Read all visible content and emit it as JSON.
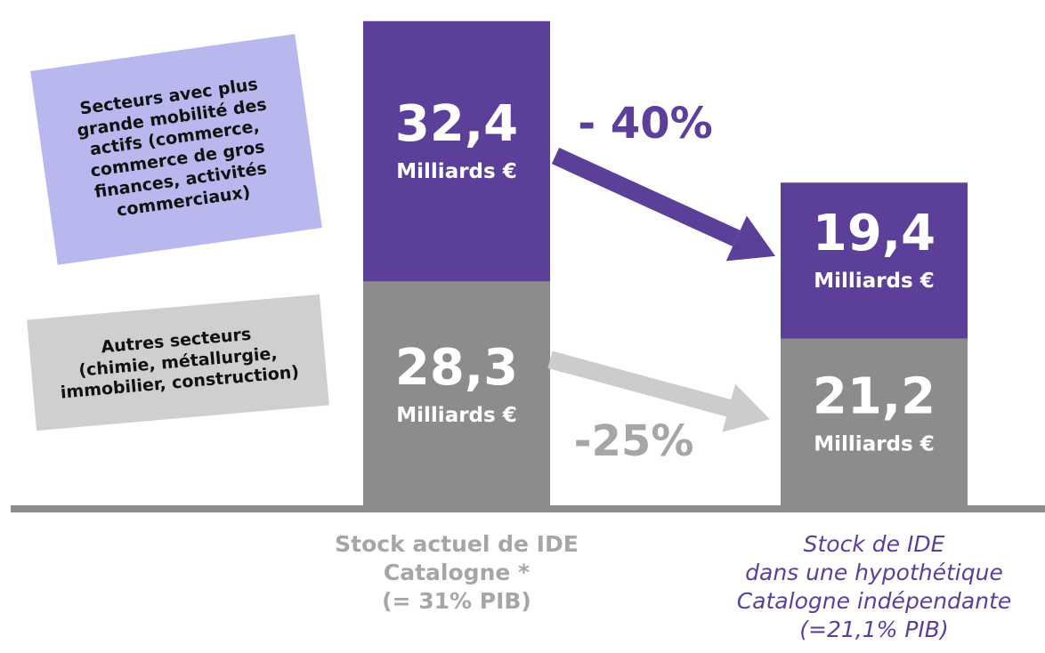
{
  "chart_data": {
    "type": "stacked_bar",
    "categories": [
      "Stock actuel de IDE\nCatalogne *\n(= 31% PIB)",
      "Stock de IDE\ndans une hypothétique\nCatalogne indépendante\n(=21,1% PIB)"
    ],
    "category_colors": [
      "#a6a6a6",
      "#5b3f99"
    ],
    "series": [
      {
        "name": "Autres secteurs\n(chimie, métallurgie,\nimmobilier, construction)",
        "color": "#8c8c8c",
        "box_color": "#cfcfcf",
        "values": [
          28.3,
          21.2
        ],
        "value_labels": [
          "28,3",
          "21,2"
        ]
      },
      {
        "name": "Secteurs avec plus\ngrande mobilité des\nactifs (commerce,\ncommerce de gros\nfinances, activités\ncommerciaux)",
        "color": "#5b3f99",
        "box_color": "#b8b8ee",
        "values": [
          32.4,
          19.4
        ],
        "value_labels": [
          "32,4",
          "19,4"
        ]
      }
    ],
    "unit_label": "Milliards €",
    "annotations": [
      {
        "text": "- 40%",
        "color": "#5b3f99"
      },
      {
        "text": "-25%",
        "color": "#a6a6a6"
      }
    ],
    "ylim": [
      0,
      62
    ]
  }
}
